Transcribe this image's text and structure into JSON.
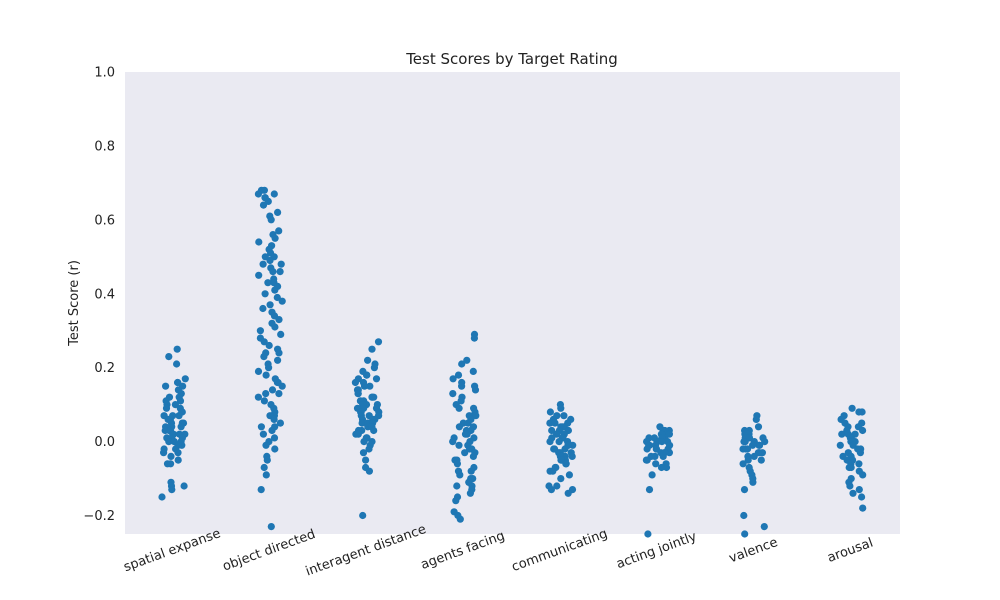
{
  "chart_data": {
    "type": "scatter",
    "title": "Test Scores by Target Rating",
    "ylabel": "Test Score (r)",
    "xlabel": "",
    "ylim": [
      -0.25,
      1.0
    ],
    "yticks": [
      -0.2,
      0.0,
      0.2,
      0.4,
      0.6,
      0.8,
      1.0
    ],
    "ytick_labels": [
      "−0.2",
      "0.0",
      "0.2",
      "0.4",
      "0.6",
      "0.8",
      "1.0"
    ],
    "grid": false,
    "background_color": "#eaeaf2",
    "point_color": "#1f77b4",
    "categories": [
      "spatial expanse",
      "object directed",
      "interagent distance",
      "agents facing",
      "communicating",
      "acting jointly",
      "valence",
      "arousal"
    ],
    "series": [
      {
        "category": "spatial expanse",
        "values": [
          0.25,
          0.23,
          0.21,
          0.17,
          0.16,
          0.16,
          0.15,
          0.15,
          0.14,
          0.13,
          0.12,
          0.12,
          0.11,
          0.11,
          0.1,
          0.1,
          0.09,
          0.09,
          0.08,
          0.08,
          0.07,
          0.07,
          0.07,
          0.06,
          0.06,
          0.06,
          0.05,
          0.05,
          0.05,
          0.04,
          0.04,
          0.04,
          0.03,
          0.03,
          0.03,
          0.02,
          0.02,
          0.02,
          0.02,
          0.01,
          0.01,
          0.01,
          0.0,
          0.0,
          0.0,
          -0.01,
          -0.01,
          -0.02,
          -0.02,
          -0.03,
          -0.03,
          -0.04,
          -0.05,
          -0.06,
          -0.06,
          -0.11,
          -0.12,
          -0.12,
          -0.13,
          -0.15
        ]
      },
      {
        "category": "object directed",
        "values": [
          0.68,
          0.68,
          0.67,
          0.67,
          0.66,
          0.66,
          0.65,
          0.64,
          0.62,
          0.61,
          0.6,
          0.57,
          0.56,
          0.55,
          0.54,
          0.53,
          0.52,
          0.51,
          0.5,
          0.5,
          0.49,
          0.48,
          0.48,
          0.47,
          0.46,
          0.46,
          0.45,
          0.44,
          0.43,
          0.43,
          0.42,
          0.41,
          0.4,
          0.39,
          0.38,
          0.37,
          0.36,
          0.35,
          0.34,
          0.33,
          0.32,
          0.31,
          0.3,
          0.29,
          0.28,
          0.27,
          0.26,
          0.25,
          0.24,
          0.24,
          0.23,
          0.22,
          0.21,
          0.2,
          0.19,
          0.18,
          0.17,
          0.16,
          0.16,
          0.15,
          0.14,
          0.13,
          0.13,
          0.12,
          0.11,
          0.1,
          0.09,
          0.08,
          0.07,
          0.07,
          0.06,
          0.05,
          0.04,
          0.04,
          0.03,
          0.02,
          0.01,
          0.0,
          -0.01,
          -0.02,
          -0.04,
          -0.05,
          -0.07,
          -0.09,
          -0.13,
          -0.23
        ]
      },
      {
        "category": "interagent distance",
        "values": [
          0.27,
          0.25,
          0.22,
          0.21,
          0.2,
          0.19,
          0.18,
          0.18,
          0.17,
          0.17,
          0.16,
          0.16,
          0.15,
          0.15,
          0.14,
          0.14,
          0.13,
          0.13,
          0.12,
          0.12,
          0.12,
          0.11,
          0.11,
          0.1,
          0.1,
          0.1,
          0.09,
          0.09,
          0.09,
          0.08,
          0.08,
          0.08,
          0.07,
          0.07,
          0.07,
          0.06,
          0.06,
          0.06,
          0.05,
          0.05,
          0.05,
          0.04,
          0.04,
          0.04,
          0.03,
          0.03,
          0.03,
          0.02,
          0.02,
          0.01,
          0.01,
          0.0,
          0.0,
          -0.01,
          -0.02,
          -0.03,
          -0.05,
          -0.07,
          -0.08,
          -0.2
        ]
      },
      {
        "category": "agents facing",
        "values": [
          0.29,
          0.28,
          0.22,
          0.21,
          0.19,
          0.18,
          0.17,
          0.16,
          0.15,
          0.15,
          0.14,
          0.13,
          0.12,
          0.11,
          0.1,
          0.09,
          0.09,
          0.08,
          0.07,
          0.07,
          0.06,
          0.05,
          0.05,
          0.04,
          0.04,
          0.03,
          0.03,
          0.02,
          0.02,
          0.01,
          0.01,
          0.0,
          0.0,
          -0.01,
          -0.01,
          -0.02,
          -0.02,
          -0.03,
          -0.03,
          -0.04,
          -0.05,
          -0.05,
          -0.06,
          -0.07,
          -0.08,
          -0.08,
          -0.09,
          -0.1,
          -0.1,
          -0.11,
          -0.11,
          -0.12,
          -0.12,
          -0.13,
          -0.14,
          -0.15,
          -0.16,
          -0.19,
          -0.2,
          -0.21
        ]
      },
      {
        "category": "communicating",
        "values": [
          0.1,
          0.09,
          0.08,
          0.07,
          0.07,
          0.06,
          0.06,
          0.05,
          0.05,
          0.05,
          0.04,
          0.04,
          0.04,
          0.03,
          0.03,
          0.03,
          0.02,
          0.02,
          0.02,
          0.01,
          0.01,
          0.01,
          0.0,
          0.0,
          0.0,
          -0.01,
          -0.01,
          -0.01,
          -0.02,
          -0.02,
          -0.02,
          -0.03,
          -0.03,
          -0.03,
          -0.04,
          -0.04,
          -0.04,
          -0.05,
          -0.05,
          -0.05,
          -0.06,
          -0.06,
          -0.07,
          -0.07,
          -0.08,
          -0.08,
          -0.09,
          -0.1,
          -0.12,
          -0.12,
          -0.13,
          -0.13,
          -0.14
        ]
      },
      {
        "category": "acting jointly",
        "values": [
          0.04,
          0.03,
          0.03,
          0.03,
          0.02,
          0.02,
          0.02,
          0.02,
          0.01,
          0.01,
          0.01,
          0.01,
          0.0,
          0.0,
          0.0,
          0.0,
          0.0,
          -0.01,
          -0.01,
          -0.01,
          -0.01,
          -0.02,
          -0.02,
          -0.02,
          -0.02,
          -0.03,
          -0.03,
          -0.03,
          -0.03,
          -0.04,
          -0.04,
          -0.04,
          -0.05,
          -0.05,
          -0.06,
          -0.06,
          -0.07,
          -0.07,
          -0.09,
          -0.13,
          -0.25
        ]
      },
      {
        "category": "valence",
        "values": [
          0.07,
          0.06,
          0.04,
          0.03,
          0.03,
          0.02,
          0.02,
          0.02,
          0.01,
          0.01,
          0.01,
          0.0,
          0.0,
          0.0,
          0.0,
          -0.01,
          -0.01,
          -0.01,
          -0.02,
          -0.02,
          -0.02,
          -0.03,
          -0.03,
          -0.03,
          -0.04,
          -0.04,
          -0.05,
          -0.05,
          -0.06,
          -0.07,
          -0.08,
          -0.09,
          -0.1,
          -0.11,
          -0.13,
          -0.2,
          -0.23,
          -0.25
        ]
      },
      {
        "category": "arousal",
        "values": [
          0.09,
          0.08,
          0.08,
          0.07,
          0.06,
          0.05,
          0.05,
          0.04,
          0.04,
          0.03,
          0.03,
          0.02,
          0.02,
          0.02,
          0.01,
          0.01,
          0.0,
          0.0,
          0.0,
          -0.01,
          -0.01,
          -0.02,
          -0.02,
          -0.03,
          -0.03,
          -0.04,
          -0.04,
          -0.05,
          -0.05,
          -0.06,
          -0.06,
          -0.07,
          -0.07,
          -0.08,
          -0.09,
          -0.1,
          -0.11,
          -0.12,
          -0.13,
          -0.14,
          -0.15,
          -0.18
        ]
      }
    ]
  }
}
